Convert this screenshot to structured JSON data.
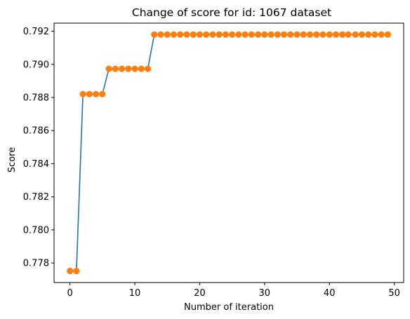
{
  "chart_data": {
    "type": "line",
    "title": "Change of score for id: 1067 dataset",
    "xlabel": "Number of iteration",
    "ylabel": "Score",
    "xlim": [
      -2.45,
      51.45
    ],
    "ylim": [
      0.77682,
      0.79249
    ],
    "xticks": [
      0,
      10,
      20,
      30,
      40,
      50
    ],
    "yticks": [
      0.778,
      0.78,
      0.782,
      0.784,
      0.786,
      0.788,
      0.79,
      0.792
    ],
    "ytick_labels": [
      "0.778",
      "0.780",
      "0.782",
      "0.784",
      "0.786",
      "0.788",
      "0.790",
      "0.792"
    ],
    "grid": false,
    "line_color": "#1f77b4",
    "marker_color": "#ff7f0e",
    "series": [
      {
        "x": [
          0,
          1,
          2,
          3,
          4,
          5,
          6,
          7,
          8,
          9,
          10,
          11,
          12,
          13,
          14,
          15,
          16,
          17,
          18,
          19,
          20,
          21,
          22,
          23,
          24,
          25,
          26,
          27,
          28,
          29,
          30,
          31,
          32,
          33,
          34,
          35,
          36,
          37,
          38,
          39,
          40,
          41,
          42,
          42.9,
          44,
          45,
          46,
          47,
          48,
          49
        ],
        "values": [
          0.77752,
          0.77752,
          0.7882,
          0.7882,
          0.7882,
          0.7882,
          0.78973,
          0.78973,
          0.78973,
          0.78973,
          0.78973,
          0.78973,
          0.78973,
          0.7918,
          0.7918,
          0.7918,
          0.7918,
          0.7918,
          0.7918,
          0.7918,
          0.7918,
          0.7918,
          0.7918,
          0.7918,
          0.7918,
          0.7918,
          0.7918,
          0.7918,
          0.7918,
          0.7918,
          0.7918,
          0.7918,
          0.7918,
          0.7918,
          0.7918,
          0.7918,
          0.7918,
          0.7918,
          0.7918,
          0.7918,
          0.7918,
          0.7918,
          0.7918,
          0.7918,
          0.7918,
          0.7918,
          0.7918,
          0.7918,
          0.7918,
          0.7918
        ]
      }
    ]
  }
}
